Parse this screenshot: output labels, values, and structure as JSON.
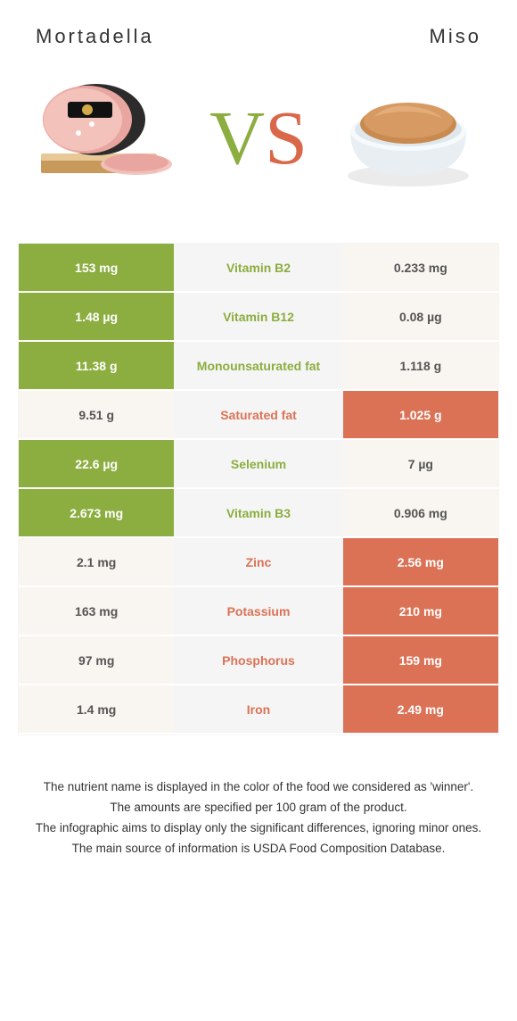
{
  "colors": {
    "green": "#8cad3f",
    "orange": "#db7256",
    "neutral_bg": "#f9f5f1",
    "mid_bg": "#f5f5f5"
  },
  "header": {
    "left_title": "Mortadella",
    "right_title": "Miso",
    "vs_v": "V",
    "vs_s": "S"
  },
  "rows": [
    {
      "left": "153 mg",
      "label": "Vitamin B2",
      "right": "0.233 mg",
      "winner": "left"
    },
    {
      "left": "1.48 µg",
      "label": "Vitamin B12",
      "right": "0.08 µg",
      "winner": "left"
    },
    {
      "left": "11.38 g",
      "label": "Monounsaturated fat",
      "right": "1.118 g",
      "winner": "left"
    },
    {
      "left": "9.51 g",
      "label": "Saturated fat",
      "right": "1.025 g",
      "winner": "right"
    },
    {
      "left": "22.6 µg",
      "label": "Selenium",
      "right": "7 µg",
      "winner": "left"
    },
    {
      "left": "2.673 mg",
      "label": "Vitamin B3",
      "right": "0.906 mg",
      "winner": "left"
    },
    {
      "left": "2.1 mg",
      "label": "Zinc",
      "right": "2.56 mg",
      "winner": "right"
    },
    {
      "left": "163 mg",
      "label": "Potassium",
      "right": "210 mg",
      "winner": "right"
    },
    {
      "left": "97 mg",
      "label": "Phosphorus",
      "right": "159 mg",
      "winner": "right"
    },
    {
      "left": "1.4 mg",
      "label": "Iron",
      "right": "2.49 mg",
      "winner": "right"
    }
  ],
  "notes": [
    "The nutrient name is displayed in the color of the food we considered as 'winner'.",
    "The amounts are specified per 100 gram of the product.",
    "The infographic aims to display only the significant differences, ignoring minor ones.",
    "The main source of information is USDA Food Composition Database."
  ]
}
